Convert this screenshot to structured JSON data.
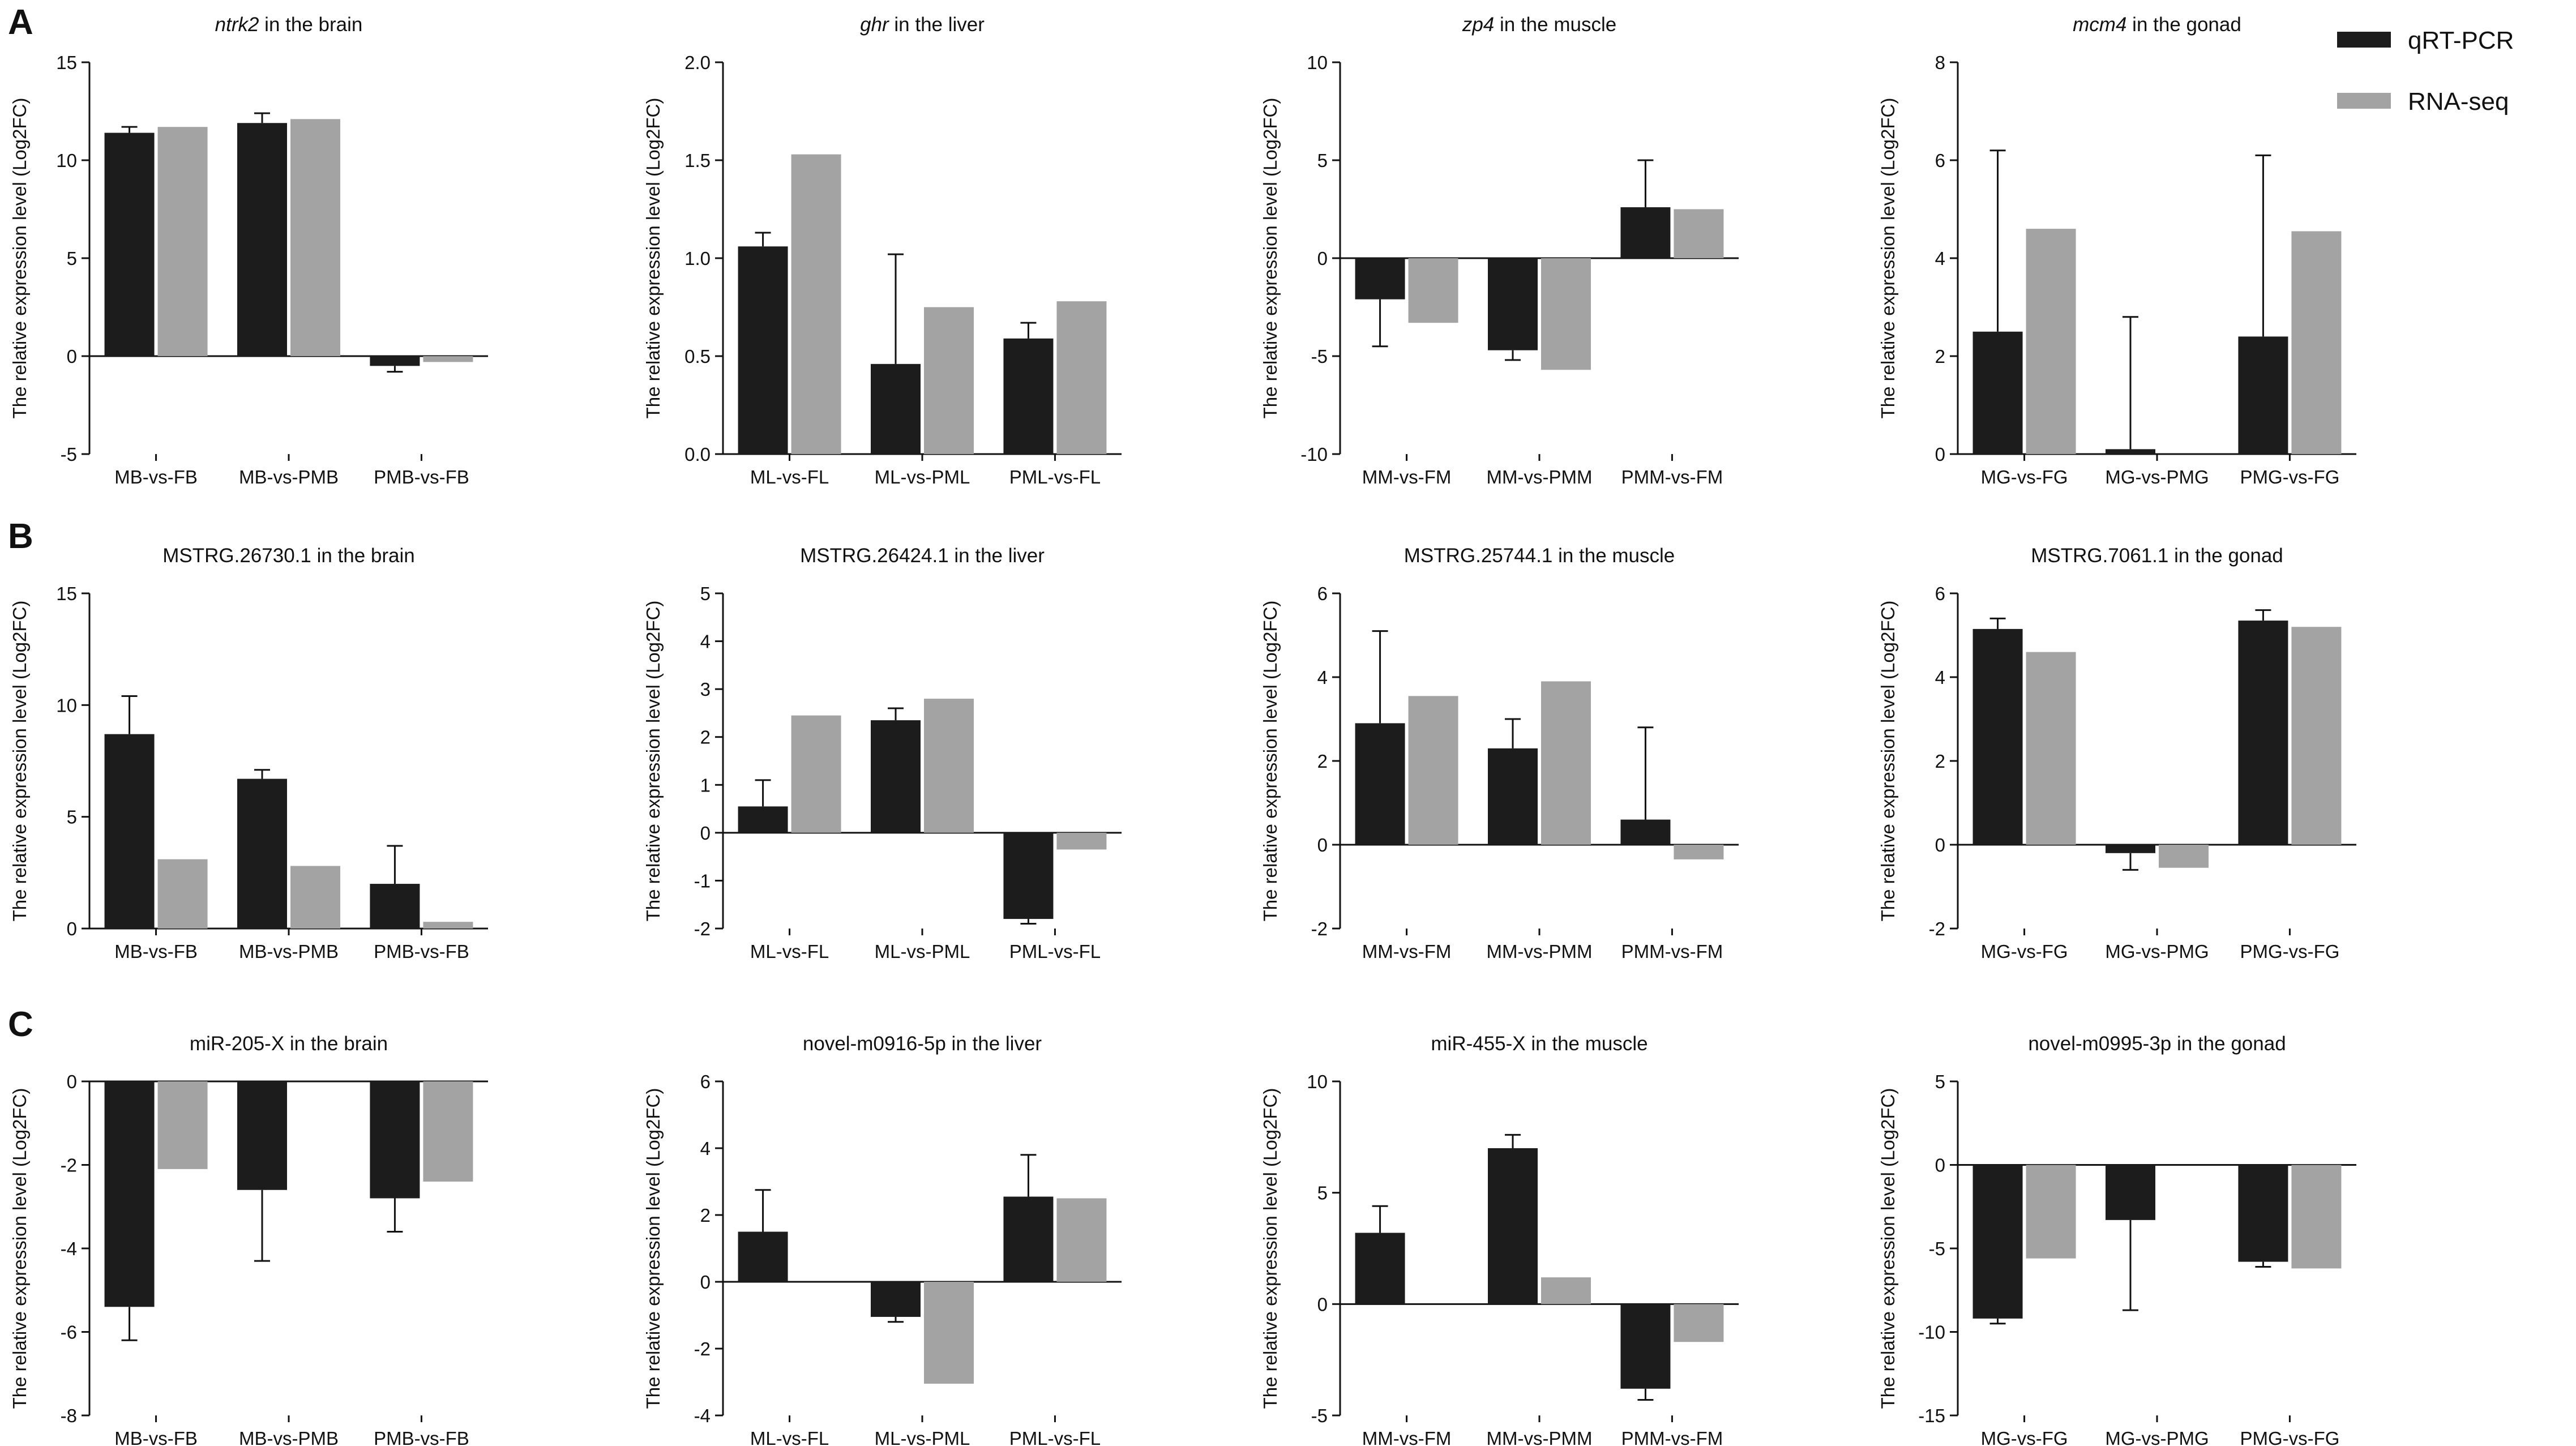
{
  "legend": {
    "items": [
      {
        "label": "qRT-PCR",
        "color": "#1c1c1c"
      },
      {
        "label": "RNA-seq",
        "color": "#a3a3a3"
      }
    ]
  },
  "panel_labels": [
    "A",
    "B",
    "C"
  ],
  "chart_data": [
    {
      "type": "bar",
      "panel": "A",
      "title": "ntrk2 in the brain",
      "gene": "ntrk2",
      "title_rest": " in the brain",
      "title_italic": true,
      "ylabel": "The relative expression level (Log2FC)",
      "ylim": [
        -5,
        15
      ],
      "yticks": [
        -5,
        0,
        5,
        10,
        15
      ],
      "ytick_labels": [
        "-5",
        "0",
        "5",
        "10",
        "15"
      ],
      "categories": [
        "MB-vs-FB",
        "MB-vs-PMB",
        "PMB-vs-FB"
      ],
      "series": [
        {
          "name": "qRT-PCR",
          "values": [
            11.4,
            11.9,
            -0.5
          ],
          "errors": [
            0.3,
            0.5,
            0.3
          ]
        },
        {
          "name": "RNA-seq",
          "values": [
            11.7,
            12.1,
            -0.3
          ]
        }
      ]
    },
    {
      "type": "bar",
      "panel": "A",
      "title": "ghr in the liver",
      "gene": "ghr",
      "title_rest": " in the liver",
      "title_italic": true,
      "ylabel": "The relative expression level (Log2FC)",
      "ylim": [
        0,
        2
      ],
      "yticks": [
        0,
        0.5,
        1,
        1.5,
        2
      ],
      "ytick_labels": [
        "0.0",
        "0.5",
        "1.0",
        "1.5",
        "2.0"
      ],
      "categories": [
        "ML-vs-FL",
        "ML-vs-PML",
        "PML-vs-FL"
      ],
      "series": [
        {
          "name": "qRT-PCR",
          "values": [
            1.06,
            0.46,
            0.59
          ],
          "errors": [
            0.07,
            0.56,
            0.08
          ]
        },
        {
          "name": "RNA-seq",
          "values": [
            1.53,
            0.75,
            0.78
          ]
        }
      ]
    },
    {
      "type": "bar",
      "panel": "A",
      "title": "zp4 in the muscle",
      "gene": "zp4",
      "title_rest": " in the muscle",
      "title_italic": true,
      "ylabel": "The relative expression level (Log2FC)",
      "ylim": [
        -10,
        10
      ],
      "yticks": [
        -10,
        -5,
        0,
        5,
        10
      ],
      "ytick_labels": [
        "-10",
        "-5",
        "0",
        "5",
        "10"
      ],
      "categories": [
        "MM-vs-FM",
        "MM-vs-PMM",
        "PMM-vs-FM"
      ],
      "series": [
        {
          "name": "qRT-PCR",
          "values": [
            -2.1,
            -4.7,
            2.6
          ],
          "errors": [
            2.4,
            0.5,
            2.4
          ]
        },
        {
          "name": "RNA-seq",
          "values": [
            -3.3,
            -5.7,
            2.5
          ]
        }
      ]
    },
    {
      "type": "bar",
      "panel": "A",
      "title": "mcm4 in the gonad",
      "gene": "mcm4",
      "title_rest": " in the gonad",
      "title_italic": true,
      "ylabel": "The relative expression level (Log2FC)",
      "ylim": [
        0,
        8
      ],
      "yticks": [
        0,
        2,
        4,
        6,
        8
      ],
      "ytick_labels": [
        "0",
        "2",
        "4",
        "6",
        "8"
      ],
      "categories": [
        "MG-vs-FG",
        "MG-vs-PMG",
        "PMG-vs-FG"
      ],
      "series": [
        {
          "name": "qRT-PCR",
          "values": [
            2.5,
            0.1,
            2.4
          ],
          "errors": [
            3.7,
            2.7,
            3.7
          ]
        },
        {
          "name": "RNA-seq",
          "values": [
            4.6,
            0.0,
            4.55
          ]
        }
      ]
    },
    {
      "type": "bar",
      "panel": "B",
      "title": "MSTRG.26730.1 in the brain",
      "title_italic": false,
      "ylabel": "The relative expression level (Log2FC)",
      "ylim": [
        0,
        15
      ],
      "yticks": [
        0,
        5,
        10,
        15
      ],
      "ytick_labels": [
        "0",
        "5",
        "10",
        "15"
      ],
      "categories": [
        "MB-vs-FB",
        "MB-vs-PMB",
        "PMB-vs-FB"
      ],
      "series": [
        {
          "name": "qRT-PCR",
          "values": [
            8.7,
            6.7,
            2.0
          ],
          "errors": [
            1.7,
            0.4,
            1.7
          ]
        },
        {
          "name": "RNA-seq",
          "values": [
            3.1,
            2.8,
            0.3
          ]
        }
      ]
    },
    {
      "type": "bar",
      "panel": "B",
      "title": "MSTRG.26424.1 in the liver",
      "title_italic": false,
      "ylabel": "The relative expression level (Log2FC)",
      "ylim": [
        -2,
        5
      ],
      "yticks": [
        -2,
        -1,
        0,
        1,
        2,
        3,
        4,
        5
      ],
      "ytick_labels": [
        "-2",
        "-1",
        "0",
        "1",
        "2",
        "3",
        "4",
        "5"
      ],
      "categories": [
        "ML-vs-FL",
        "ML-vs-PML",
        "PML-vs-FL"
      ],
      "series": [
        {
          "name": "qRT-PCR",
          "values": [
            0.55,
            2.35,
            -1.8
          ],
          "errors": [
            0.55,
            0.25,
            0.1
          ]
        },
        {
          "name": "RNA-seq",
          "values": [
            2.45,
            2.8,
            -0.35
          ]
        }
      ]
    },
    {
      "type": "bar",
      "panel": "B",
      "title": "MSTRG.25744.1 in the muscle",
      "title_italic": false,
      "ylabel": "The relative expression level (Log2FC)",
      "ylim": [
        -2,
        6
      ],
      "yticks": [
        -2,
        0,
        2,
        4,
        6
      ],
      "ytick_labels": [
        "-2",
        "0",
        "2",
        "4",
        "6"
      ],
      "categories": [
        "MM-vs-FM",
        "MM-vs-PMM",
        "PMM-vs-FM"
      ],
      "series": [
        {
          "name": "qRT-PCR",
          "values": [
            2.9,
            2.3,
            0.6
          ],
          "errors": [
            2.2,
            0.7,
            2.2
          ]
        },
        {
          "name": "RNA-seq",
          "values": [
            3.55,
            3.9,
            -0.35
          ]
        }
      ]
    },
    {
      "type": "bar",
      "panel": "B",
      "title": "MSTRG.7061.1 in the gonad",
      "title_italic": false,
      "ylabel": "The relative expression level (Log2FC)",
      "ylim": [
        -2,
        6
      ],
      "yticks": [
        -2,
        0,
        2,
        4,
        6
      ],
      "ytick_labels": [
        "-2",
        "0",
        "2",
        "4",
        "6"
      ],
      "categories": [
        "MG-vs-FG",
        "MG-vs-PMG",
        "PMG-vs-FG"
      ],
      "series": [
        {
          "name": "qRT-PCR",
          "values": [
            5.15,
            -0.2,
            5.35
          ],
          "errors": [
            0.25,
            0.4,
            0.25
          ]
        },
        {
          "name": "RNA-seq",
          "values": [
            4.6,
            -0.55,
            5.2
          ]
        }
      ]
    },
    {
      "type": "bar",
      "panel": "C",
      "title": "miR-205-X in the brain",
      "title_italic": false,
      "ylabel": "The relative expression level (Log2FC)",
      "ylim": [
        -8,
        0
      ],
      "yticks": [
        -8,
        -6,
        -4,
        -2,
        0
      ],
      "ytick_labels": [
        "-8",
        "-6",
        "-4",
        "-2",
        "0"
      ],
      "categories": [
        "MB-vs-FB",
        "MB-vs-PMB",
        "PMB-vs-FB"
      ],
      "series": [
        {
          "name": "qRT-PCR",
          "values": [
            -5.4,
            -2.6,
            -2.8
          ],
          "errors": [
            0.8,
            1.7,
            0.8
          ]
        },
        {
          "name": "RNA-seq",
          "values": [
            -2.1,
            0.0,
            -2.4
          ]
        }
      ]
    },
    {
      "type": "bar",
      "panel": "C",
      "title": "novel-m0916-5p in the liver",
      "title_italic": false,
      "ylabel": "The relative expression level (Log2FC)",
      "ylim": [
        -4,
        6
      ],
      "yticks": [
        -4,
        -2,
        0,
        2,
        4,
        6
      ],
      "ytick_labels": [
        "-4",
        "-2",
        "0",
        "2",
        "4",
        "6"
      ],
      "categories": [
        "ML-vs-FL",
        "ML-vs-PML",
        "PML-vs-FL"
      ],
      "series": [
        {
          "name": "qRT-PCR",
          "values": [
            1.5,
            -1.05,
            2.55
          ],
          "errors": [
            1.25,
            0.15,
            1.25
          ]
        },
        {
          "name": "RNA-seq",
          "values": [
            0.0,
            -3.05,
            2.5
          ]
        }
      ]
    },
    {
      "type": "bar",
      "panel": "C",
      "title": "miR-455-X in the muscle",
      "title_italic": false,
      "ylabel": "The relative expression level (Log2FC)",
      "ylim": [
        -5,
        10
      ],
      "yticks": [
        -5,
        0,
        5,
        10
      ],
      "ytick_labels": [
        "-5",
        "0",
        "5",
        "10"
      ],
      "categories": [
        "MM-vs-FM",
        "MM-vs-PMM",
        "PMM-vs-FM"
      ],
      "series": [
        {
          "name": "qRT-PCR",
          "values": [
            3.2,
            7.0,
            -3.8
          ],
          "errors": [
            1.2,
            0.6,
            0.5
          ]
        },
        {
          "name": "RNA-seq",
          "values": [
            0.0,
            1.2,
            -1.7
          ]
        }
      ]
    },
    {
      "type": "bar",
      "panel": "C",
      "title": "novel-m0995-3p  in the gonad",
      "title_italic": false,
      "ylabel": "The relative expression level (Log2FC)",
      "ylim": [
        -15,
        5
      ],
      "yticks": [
        -15,
        -10,
        -5,
        0,
        5
      ],
      "ytick_labels": [
        "-15",
        "-10",
        "-5",
        "0",
        "5"
      ],
      "categories": [
        "MG-vs-FG",
        "MG-vs-PMG",
        "PMG-vs-FG"
      ],
      "series": [
        {
          "name": "qRT-PCR",
          "values": [
            -9.2,
            -3.3,
            -5.8
          ],
          "errors": [
            0.3,
            5.4,
            0.3
          ]
        },
        {
          "name": "RNA-seq",
          "values": [
            -5.6,
            0.0,
            -6.2
          ]
        }
      ]
    }
  ]
}
